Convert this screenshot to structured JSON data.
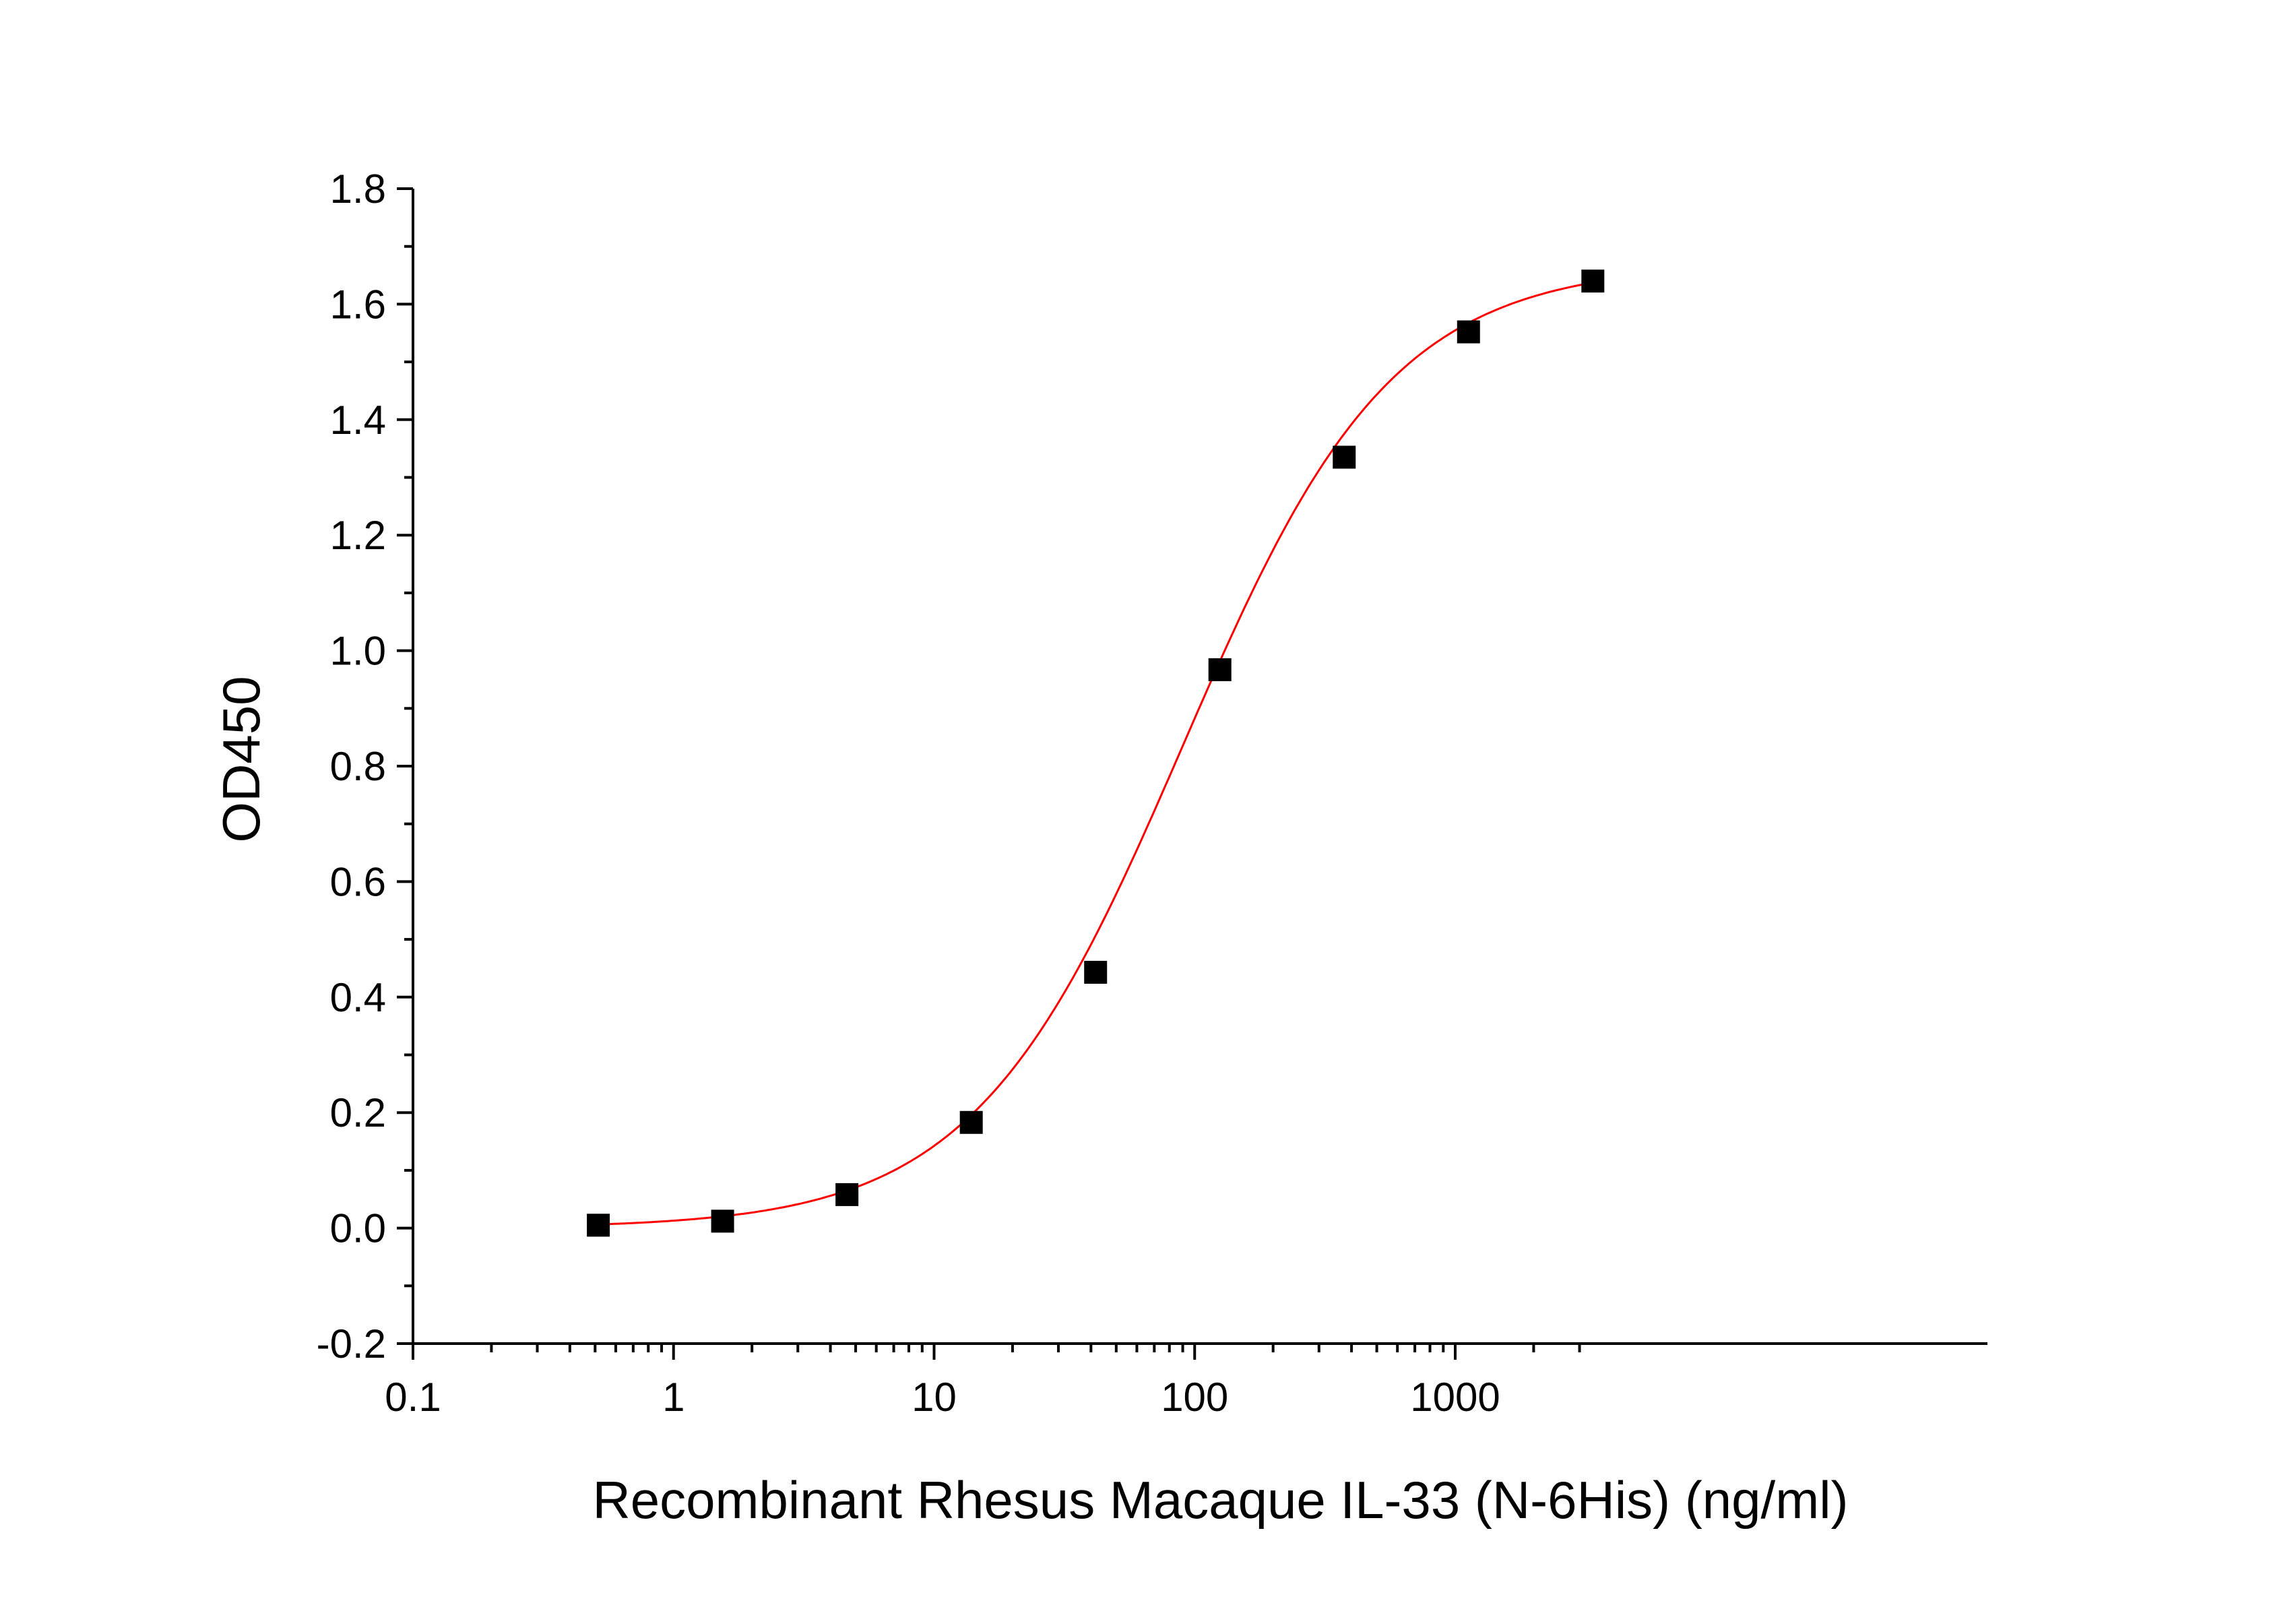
{
  "chart_data": {
    "type": "scatter",
    "title": "",
    "xlabel": "Recombinant Rhesus Macaque IL-33 (N-6His) (ng/ml)",
    "ylabel": "OD450",
    "x_scale": "log",
    "xlim": [
      0.1,
      3600
    ],
    "ylim": [
      -0.2,
      1.8
    ],
    "x_ticks": [
      0.1,
      1,
      10,
      100,
      1000
    ],
    "x_tick_labels": [
      "0.1",
      "1",
      "10",
      "100",
      "1000"
    ],
    "y_ticks": [
      -0.2,
      0.0,
      0.2,
      0.4,
      0.6,
      0.8,
      1.0,
      1.2,
      1.4,
      1.6,
      1.8
    ],
    "y_tick_labels": [
      "-0.2",
      "0.0",
      "0.2",
      "0.4",
      "0.6",
      "0.8",
      "1.0",
      "1.2",
      "1.4",
      "1.6",
      "1.8"
    ],
    "grid": false,
    "legend": "none",
    "series": [
      {
        "kind": "points",
        "marker": "square",
        "color": "#000000",
        "x": [
          0.5144,
          1.543,
          4.63,
          13.89,
          41.67,
          125,
          375,
          1125,
          3375
        ],
        "y": [
          0.005,
          0.012,
          0.058,
          0.183,
          0.443,
          0.967,
          1.335,
          1.552,
          1.64
        ]
      },
      {
        "kind": "fit-curve",
        "color": "#ff0000",
        "model": "4PL",
        "bottom": 0.0,
        "top": 1.67,
        "ec50": 90,
        "hill": 1.08,
        "x_range": [
          0.5144,
          3375
        ]
      }
    ]
  }
}
